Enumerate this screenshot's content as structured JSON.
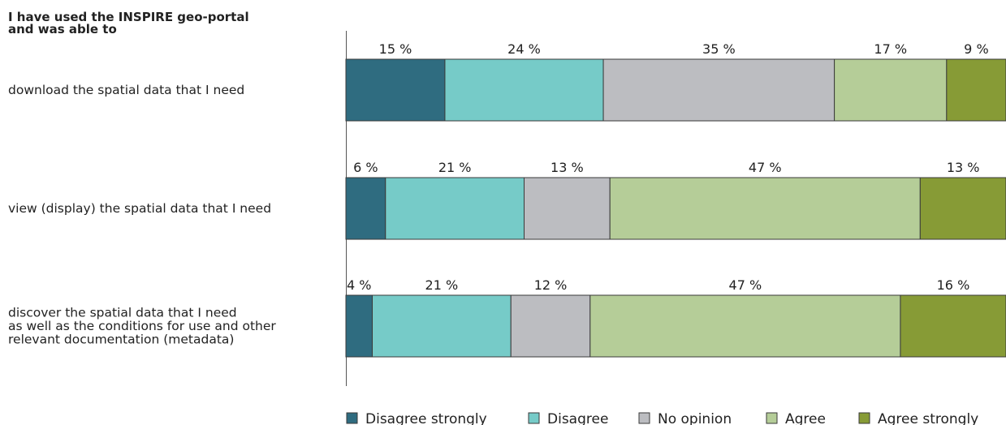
{
  "chart_data": {
    "type": "bar",
    "orientation": "horizontal",
    "stacked": true,
    "title": "I have used the INSPIRE geo-portal\nand was able to",
    "categories": [
      "download the spatial data that I need",
      "view (display) the spatial data that I need",
      "discover the spatial data that I need\nas well as the conditions for use and other\nrelevant documentation (metadata)"
    ],
    "series": [
      {
        "name": "Disagree strongly",
        "color": "#2f6c80",
        "values": [
          15,
          6,
          4
        ],
        "labels": [
          "15 %",
          "6 %",
          "4 %"
        ]
      },
      {
        "name": "Disagree",
        "color": "#76cbc8",
        "values": [
          24,
          21,
          21
        ],
        "labels": [
          "24 %",
          "21 %",
          "21 %"
        ]
      },
      {
        "name": "No opinion",
        "color": "#bcbdc1",
        "values": [
          35,
          13,
          12
        ],
        "labels": [
          "35 %",
          "13 %",
          "12 %"
        ]
      },
      {
        "name": "Agree",
        "color": "#b5cd98",
        "values": [
          17,
          47,
          47
        ],
        "labels": [
          "17 %",
          "47 %",
          "47 %"
        ]
      },
      {
        "name": "Agree strongly",
        "color": "#879b36",
        "values": [
          9,
          13,
          16
        ],
        "labels": [
          "9 %",
          "13 %",
          "16 %"
        ]
      }
    ],
    "xlim": [
      0,
      100
    ],
    "grid": false,
    "legend_position": "bottom-right"
  }
}
